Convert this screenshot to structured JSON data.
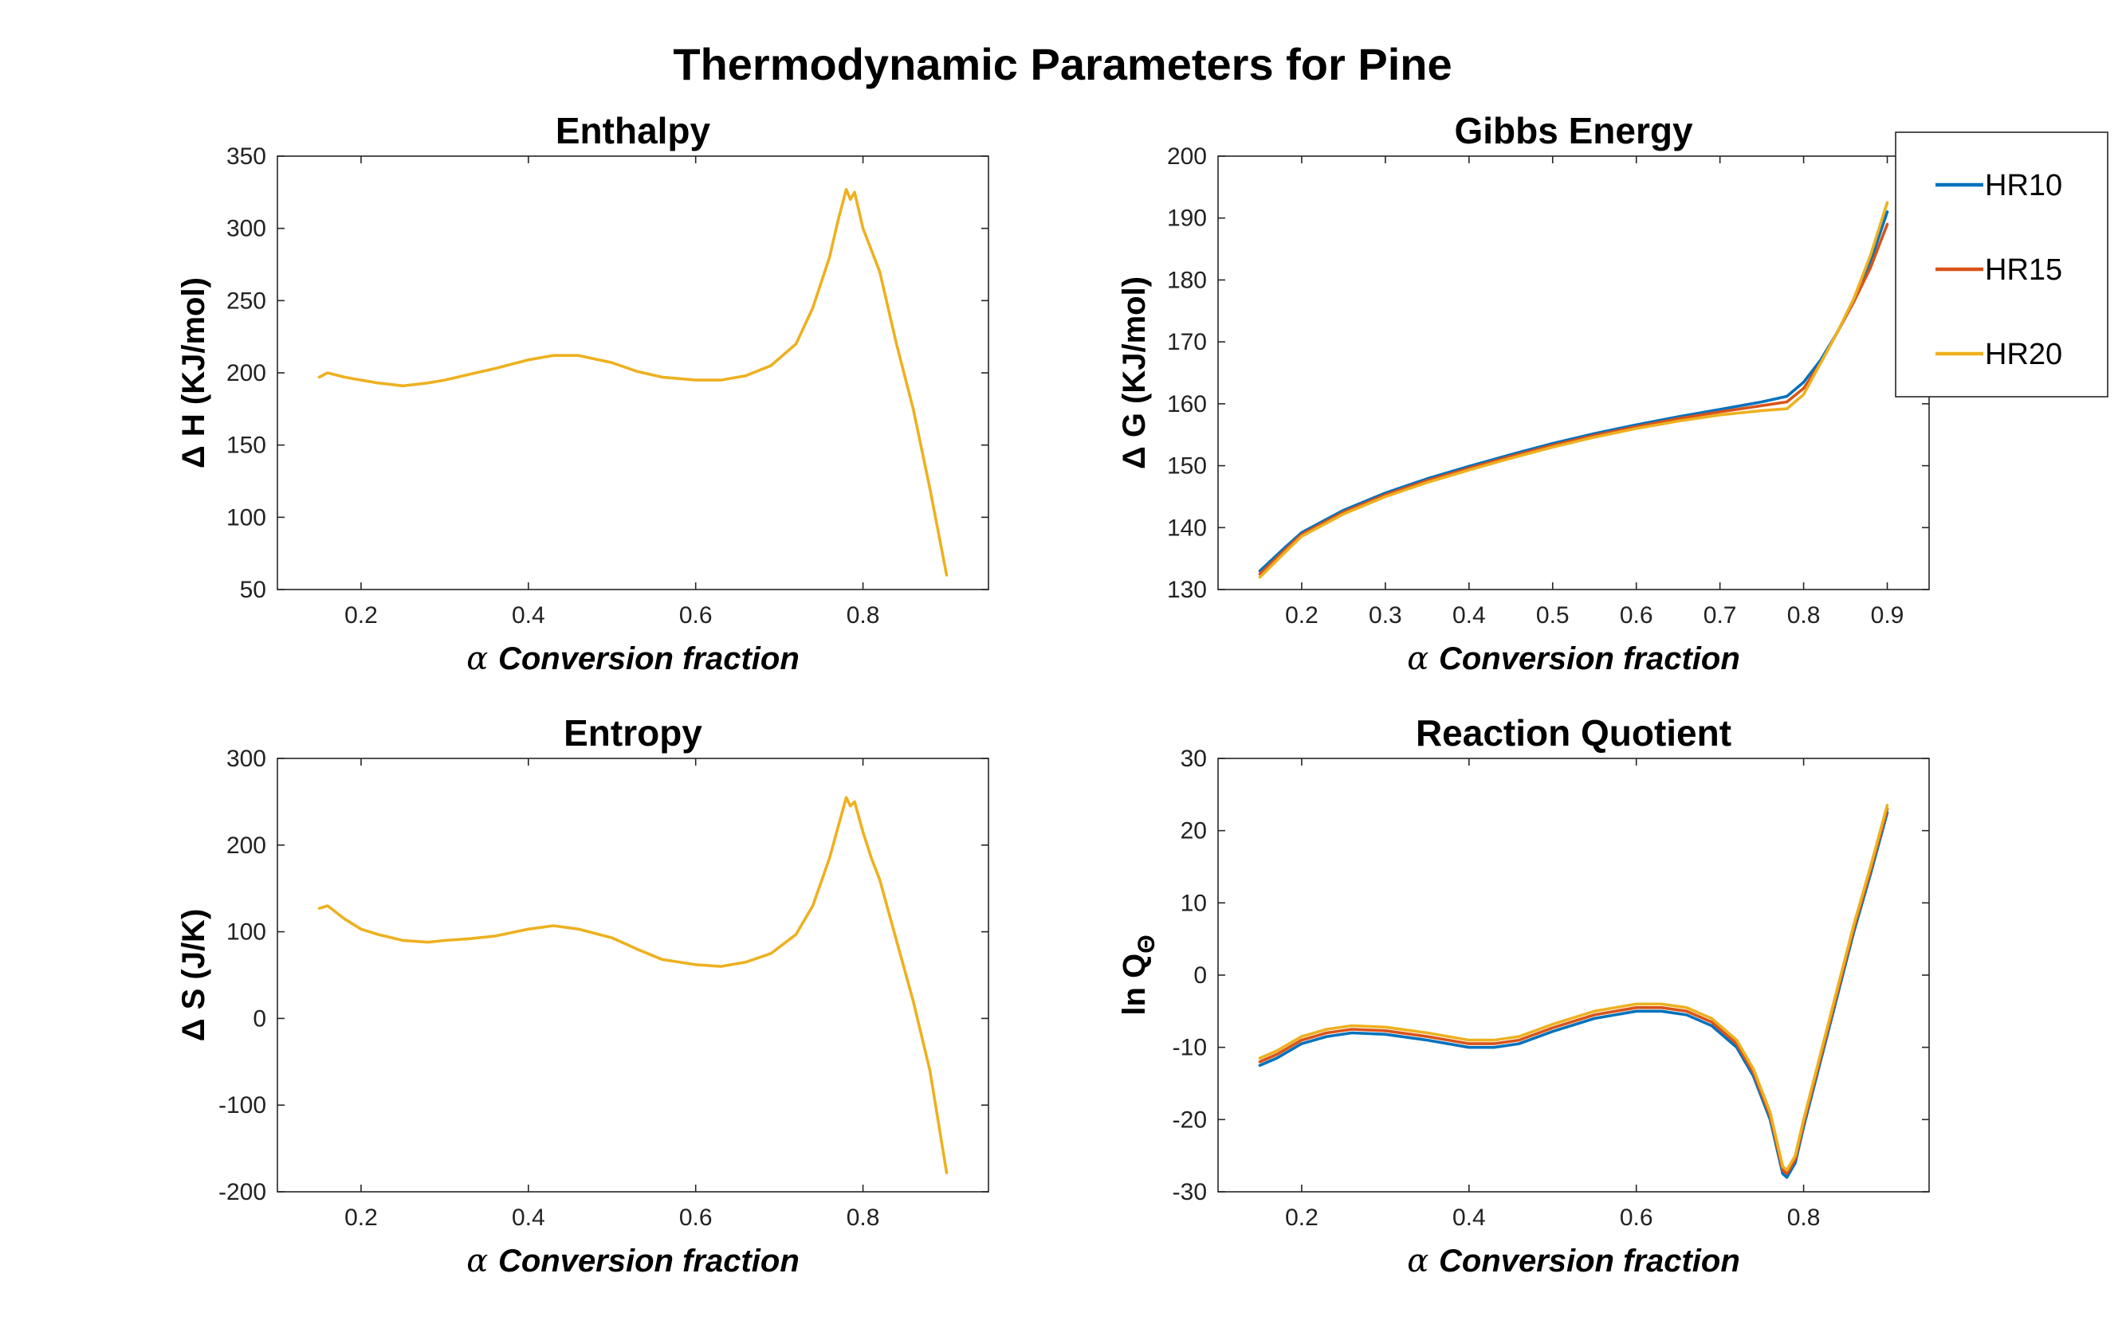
{
  "figure": {
    "title": "Thermodynamic Parameters for Pine",
    "legend": {
      "placement": "outside-right of Gibbs Energy panel",
      "entries": [
        {
          "name": "HR10",
          "color": "#0072BD"
        },
        {
          "name": "HR15",
          "color": "#D95319"
        },
        {
          "name": "HR20",
          "color": "#EDB120"
        }
      ]
    }
  },
  "chart_data": [
    {
      "type": "line",
      "title": "Enthalpy",
      "xlabel_symbol": "α",
      "xlabel": "Conversion fraction",
      "ylabel": "Δ H (KJ/mol)",
      "xlim": [
        0.1,
        0.95
      ],
      "ylim": [
        50,
        350
      ],
      "xticks": [
        0.2,
        0.4,
        0.6,
        0.8
      ],
      "yticks": [
        50,
        100,
        150,
        200,
        250,
        300,
        350
      ],
      "xtick_labels": [
        "0.2",
        "0.4",
        "0.6",
        "0.8"
      ],
      "ytick_labels": [
        "50",
        "100",
        "150",
        "200",
        "250",
        "300",
        "350"
      ],
      "grid": false,
      "series": [
        {
          "name": "HR20",
          "color": "#EDB120",
          "x": [
            0.15,
            0.16,
            0.18,
            0.2,
            0.22,
            0.25,
            0.28,
            0.3,
            0.33,
            0.36,
            0.4,
            0.43,
            0.46,
            0.5,
            0.53,
            0.56,
            0.6,
            0.63,
            0.66,
            0.69,
            0.72,
            0.74,
            0.76,
            0.77,
            0.78,
            0.785,
            0.79,
            0.8,
            0.81,
            0.82,
            0.84,
            0.86,
            0.88,
            0.9
          ],
          "y": [
            197,
            200,
            197,
            195,
            193,
            191,
            193,
            195,
            199,
            203,
            209,
            212,
            212,
            207,
            201,
            197,
            195,
            195,
            198,
            205,
            220,
            245,
            280,
            305,
            327,
            320,
            325,
            300,
            285,
            270,
            220,
            175,
            120,
            60
          ]
        }
      ]
    },
    {
      "type": "line",
      "title": "Gibbs Energy",
      "xlabel_symbol": "α",
      "xlabel": "Conversion fraction",
      "ylabel": "Δ G (KJ/mol)",
      "xlim": [
        0.1,
        0.95
      ],
      "ylim": [
        130,
        200
      ],
      "xticks": [
        0.2,
        0.3,
        0.4,
        0.5,
        0.6,
        0.7,
        0.8,
        0.9
      ],
      "yticks": [
        130,
        140,
        150,
        160,
        170,
        180,
        190,
        200
      ],
      "xtick_labels": [
        "0.2",
        "0.3",
        "0.4",
        "0.5",
        "0.6",
        "0.7",
        "0.8",
        "0.9"
      ],
      "ytick_labels": [
        "130",
        "140",
        "150",
        "160",
        "170",
        "180",
        "190",
        "200"
      ],
      "grid": false,
      "series": [
        {
          "name": "HR10",
          "color": "#0072BD",
          "x": [
            0.15,
            0.18,
            0.2,
            0.25,
            0.3,
            0.35,
            0.4,
            0.45,
            0.5,
            0.55,
            0.6,
            0.65,
            0.7,
            0.75,
            0.78,
            0.8,
            0.82,
            0.84,
            0.86,
            0.88,
            0.9
          ],
          "y": [
            133,
            136.8,
            139.2,
            142.8,
            145.6,
            147.9,
            149.9,
            151.8,
            153.6,
            155.2,
            156.6,
            157.9,
            159.1,
            160.3,
            161.2,
            163.5,
            167,
            171.5,
            176.5,
            183,
            191
          ]
        },
        {
          "name": "HR15",
          "color": "#D95319",
          "x": [
            0.15,
            0.18,
            0.2,
            0.25,
            0.3,
            0.35,
            0.4,
            0.45,
            0.5,
            0.55,
            0.6,
            0.65,
            0.7,
            0.75,
            0.78,
            0.8,
            0.82,
            0.84,
            0.86,
            0.88,
            0.9
          ],
          "y": [
            132.5,
            136.4,
            138.9,
            142.5,
            145.3,
            147.6,
            149.6,
            151.5,
            153.3,
            154.9,
            156.3,
            157.6,
            158.7,
            159.7,
            160.3,
            162.5,
            166.5,
            171.5,
            176.5,
            182,
            189
          ]
        },
        {
          "name": "HR20",
          "color": "#EDB120",
          "x": [
            0.15,
            0.18,
            0.2,
            0.25,
            0.3,
            0.35,
            0.4,
            0.45,
            0.5,
            0.55,
            0.6,
            0.65,
            0.7,
            0.75,
            0.78,
            0.8,
            0.82,
            0.84,
            0.86,
            0.88,
            0.9
          ],
          "y": [
            132,
            136,
            138.6,
            142.2,
            145,
            147.3,
            149.3,
            151.2,
            153,
            154.6,
            156,
            157.2,
            158.2,
            158.9,
            159.2,
            161.5,
            166.5,
            171.5,
            177,
            184,
            192.5
          ]
        }
      ]
    },
    {
      "type": "line",
      "title": "Entropy",
      "xlabel_symbol": "α",
      "xlabel": "Conversion fraction",
      "ylabel": "Δ S (J/K)",
      "xlim": [
        0.1,
        0.95
      ],
      "ylim": [
        -200,
        300
      ],
      "xticks": [
        0.2,
        0.4,
        0.6,
        0.8
      ],
      "yticks": [
        -200,
        -100,
        0,
        100,
        200,
        300
      ],
      "xtick_labels": [
        "0.2",
        "0.4",
        "0.6",
        "0.8"
      ],
      "ytick_labels": [
        "-200",
        "-100",
        "0",
        "100",
        "200",
        "300"
      ],
      "grid": false,
      "series": [
        {
          "name": "HR20",
          "color": "#EDB120",
          "x": [
            0.15,
            0.16,
            0.18,
            0.2,
            0.22,
            0.25,
            0.28,
            0.3,
            0.33,
            0.36,
            0.4,
            0.43,
            0.46,
            0.5,
            0.53,
            0.56,
            0.6,
            0.63,
            0.66,
            0.69,
            0.72,
            0.74,
            0.76,
            0.77,
            0.78,
            0.785,
            0.79,
            0.8,
            0.81,
            0.82,
            0.84,
            0.86,
            0.88,
            0.9
          ],
          "y": [
            127,
            130,
            115,
            103,
            97,
            90,
            88,
            90,
            92,
            95,
            103,
            107,
            103,
            93,
            80,
            68,
            62,
            60,
            65,
            75,
            97,
            130,
            185,
            220,
            255,
            245,
            250,
            215,
            185,
            160,
            90,
            20,
            -60,
            -178
          ]
        }
      ]
    },
    {
      "type": "line",
      "title": "Reaction Quotient",
      "xlabel_symbol": "α",
      "xlabel": "Conversion fraction",
      "ylabel": "ln Q",
      "ylabel_subscript": "Θ",
      "xlim": [
        0.1,
        0.95
      ],
      "ylim": [
        -30,
        30
      ],
      "xticks": [
        0.2,
        0.4,
        0.6,
        0.8
      ],
      "yticks": [
        -30,
        -20,
        -10,
        0,
        10,
        20,
        30
      ],
      "xtick_labels": [
        "0.2",
        "0.4",
        "0.6",
        "0.8"
      ],
      "ytick_labels": [
        "-30",
        "-20",
        "-10",
        "0",
        "10",
        "20",
        "30"
      ],
      "grid": false,
      "series": [
        {
          "name": "HR10",
          "color": "#0072BD",
          "x": [
            0.15,
            0.17,
            0.2,
            0.23,
            0.26,
            0.3,
            0.35,
            0.4,
            0.43,
            0.46,
            0.5,
            0.55,
            0.6,
            0.63,
            0.66,
            0.69,
            0.72,
            0.74,
            0.76,
            0.77,
            0.775,
            0.78,
            0.79,
            0.8,
            0.82,
            0.84,
            0.86,
            0.88,
            0.9
          ],
          "y": [
            -12.5,
            -11.5,
            -9.5,
            -8.5,
            -8,
            -8.2,
            -9,
            -10,
            -10,
            -9.5,
            -7.8,
            -6,
            -5,
            -5,
            -5.5,
            -7,
            -10,
            -14,
            -20,
            -25,
            -27.5,
            -28,
            -26,
            -21,
            -12,
            -3,
            6,
            14,
            22.5
          ]
        },
        {
          "name": "HR15",
          "color": "#D95319",
          "x": [
            0.15,
            0.17,
            0.2,
            0.23,
            0.26,
            0.3,
            0.35,
            0.4,
            0.43,
            0.46,
            0.5,
            0.55,
            0.6,
            0.63,
            0.66,
            0.69,
            0.72,
            0.74,
            0.76,
            0.77,
            0.775,
            0.78,
            0.79,
            0.8,
            0.82,
            0.84,
            0.86,
            0.88,
            0.9
          ],
          "y": [
            -12,
            -11,
            -9,
            -8,
            -7.5,
            -7.7,
            -8.5,
            -9.5,
            -9.5,
            -9,
            -7.3,
            -5.5,
            -4.5,
            -4.5,
            -5,
            -6.5,
            -9.5,
            -13.5,
            -19.5,
            -24.5,
            -27,
            -27.5,
            -25.5,
            -20.5,
            -11.5,
            -2.5,
            6.5,
            14.5,
            23
          ]
        },
        {
          "name": "HR20",
          "color": "#EDB120",
          "x": [
            0.15,
            0.17,
            0.2,
            0.23,
            0.26,
            0.3,
            0.35,
            0.4,
            0.43,
            0.46,
            0.5,
            0.55,
            0.6,
            0.63,
            0.66,
            0.69,
            0.72,
            0.74,
            0.76,
            0.77,
            0.775,
            0.78,
            0.79,
            0.8,
            0.82,
            0.84,
            0.86,
            0.88,
            0.9
          ],
          "y": [
            -11.5,
            -10.5,
            -8.5,
            -7.5,
            -7,
            -7.2,
            -8,
            -9,
            -9,
            -8.5,
            -6.8,
            -5,
            -4,
            -4,
            -4.5,
            -6,
            -9,
            -13,
            -19,
            -24,
            -26.5,
            -27,
            -25,
            -20,
            -11,
            -2,
            7,
            15,
            23.5
          ]
        }
      ]
    }
  ]
}
